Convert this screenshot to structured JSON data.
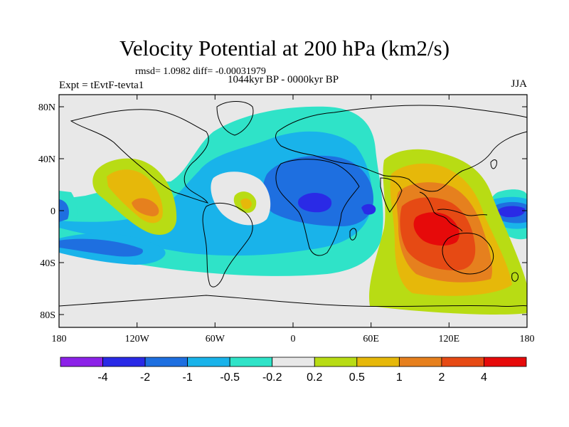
{
  "header": {
    "title": "Velocity Potential at 200 hPa (km2/s)",
    "stats": "rmsd= 1.0982 diff= -0.00031979",
    "period": "1044kyr BP - 0000kyr BP",
    "experiment": "Expt = tEvtF-tevta1",
    "season": "JJA"
  },
  "axes": {
    "lat_labels": [
      "80N",
      "40N",
      "0",
      "40S",
      "80S"
    ],
    "lon_labels": [
      "180",
      "120W",
      "60W",
      "0",
      "60E",
      "120E",
      "180"
    ]
  },
  "colorbar": {
    "colors": [
      "#8c22e8",
      "#2a2ae6",
      "#1e6fe0",
      "#19b3ea",
      "#2fe3c8",
      "#e8e8e8",
      "#b8dc14",
      "#e6b80a",
      "#e6801e",
      "#e64a14",
      "#e60a0a"
    ],
    "labels": [
      "-4",
      "-2",
      "-1",
      "-0.5",
      "-0.2",
      "0.2",
      "0.5",
      "1",
      "2",
      "4"
    ]
  }
}
